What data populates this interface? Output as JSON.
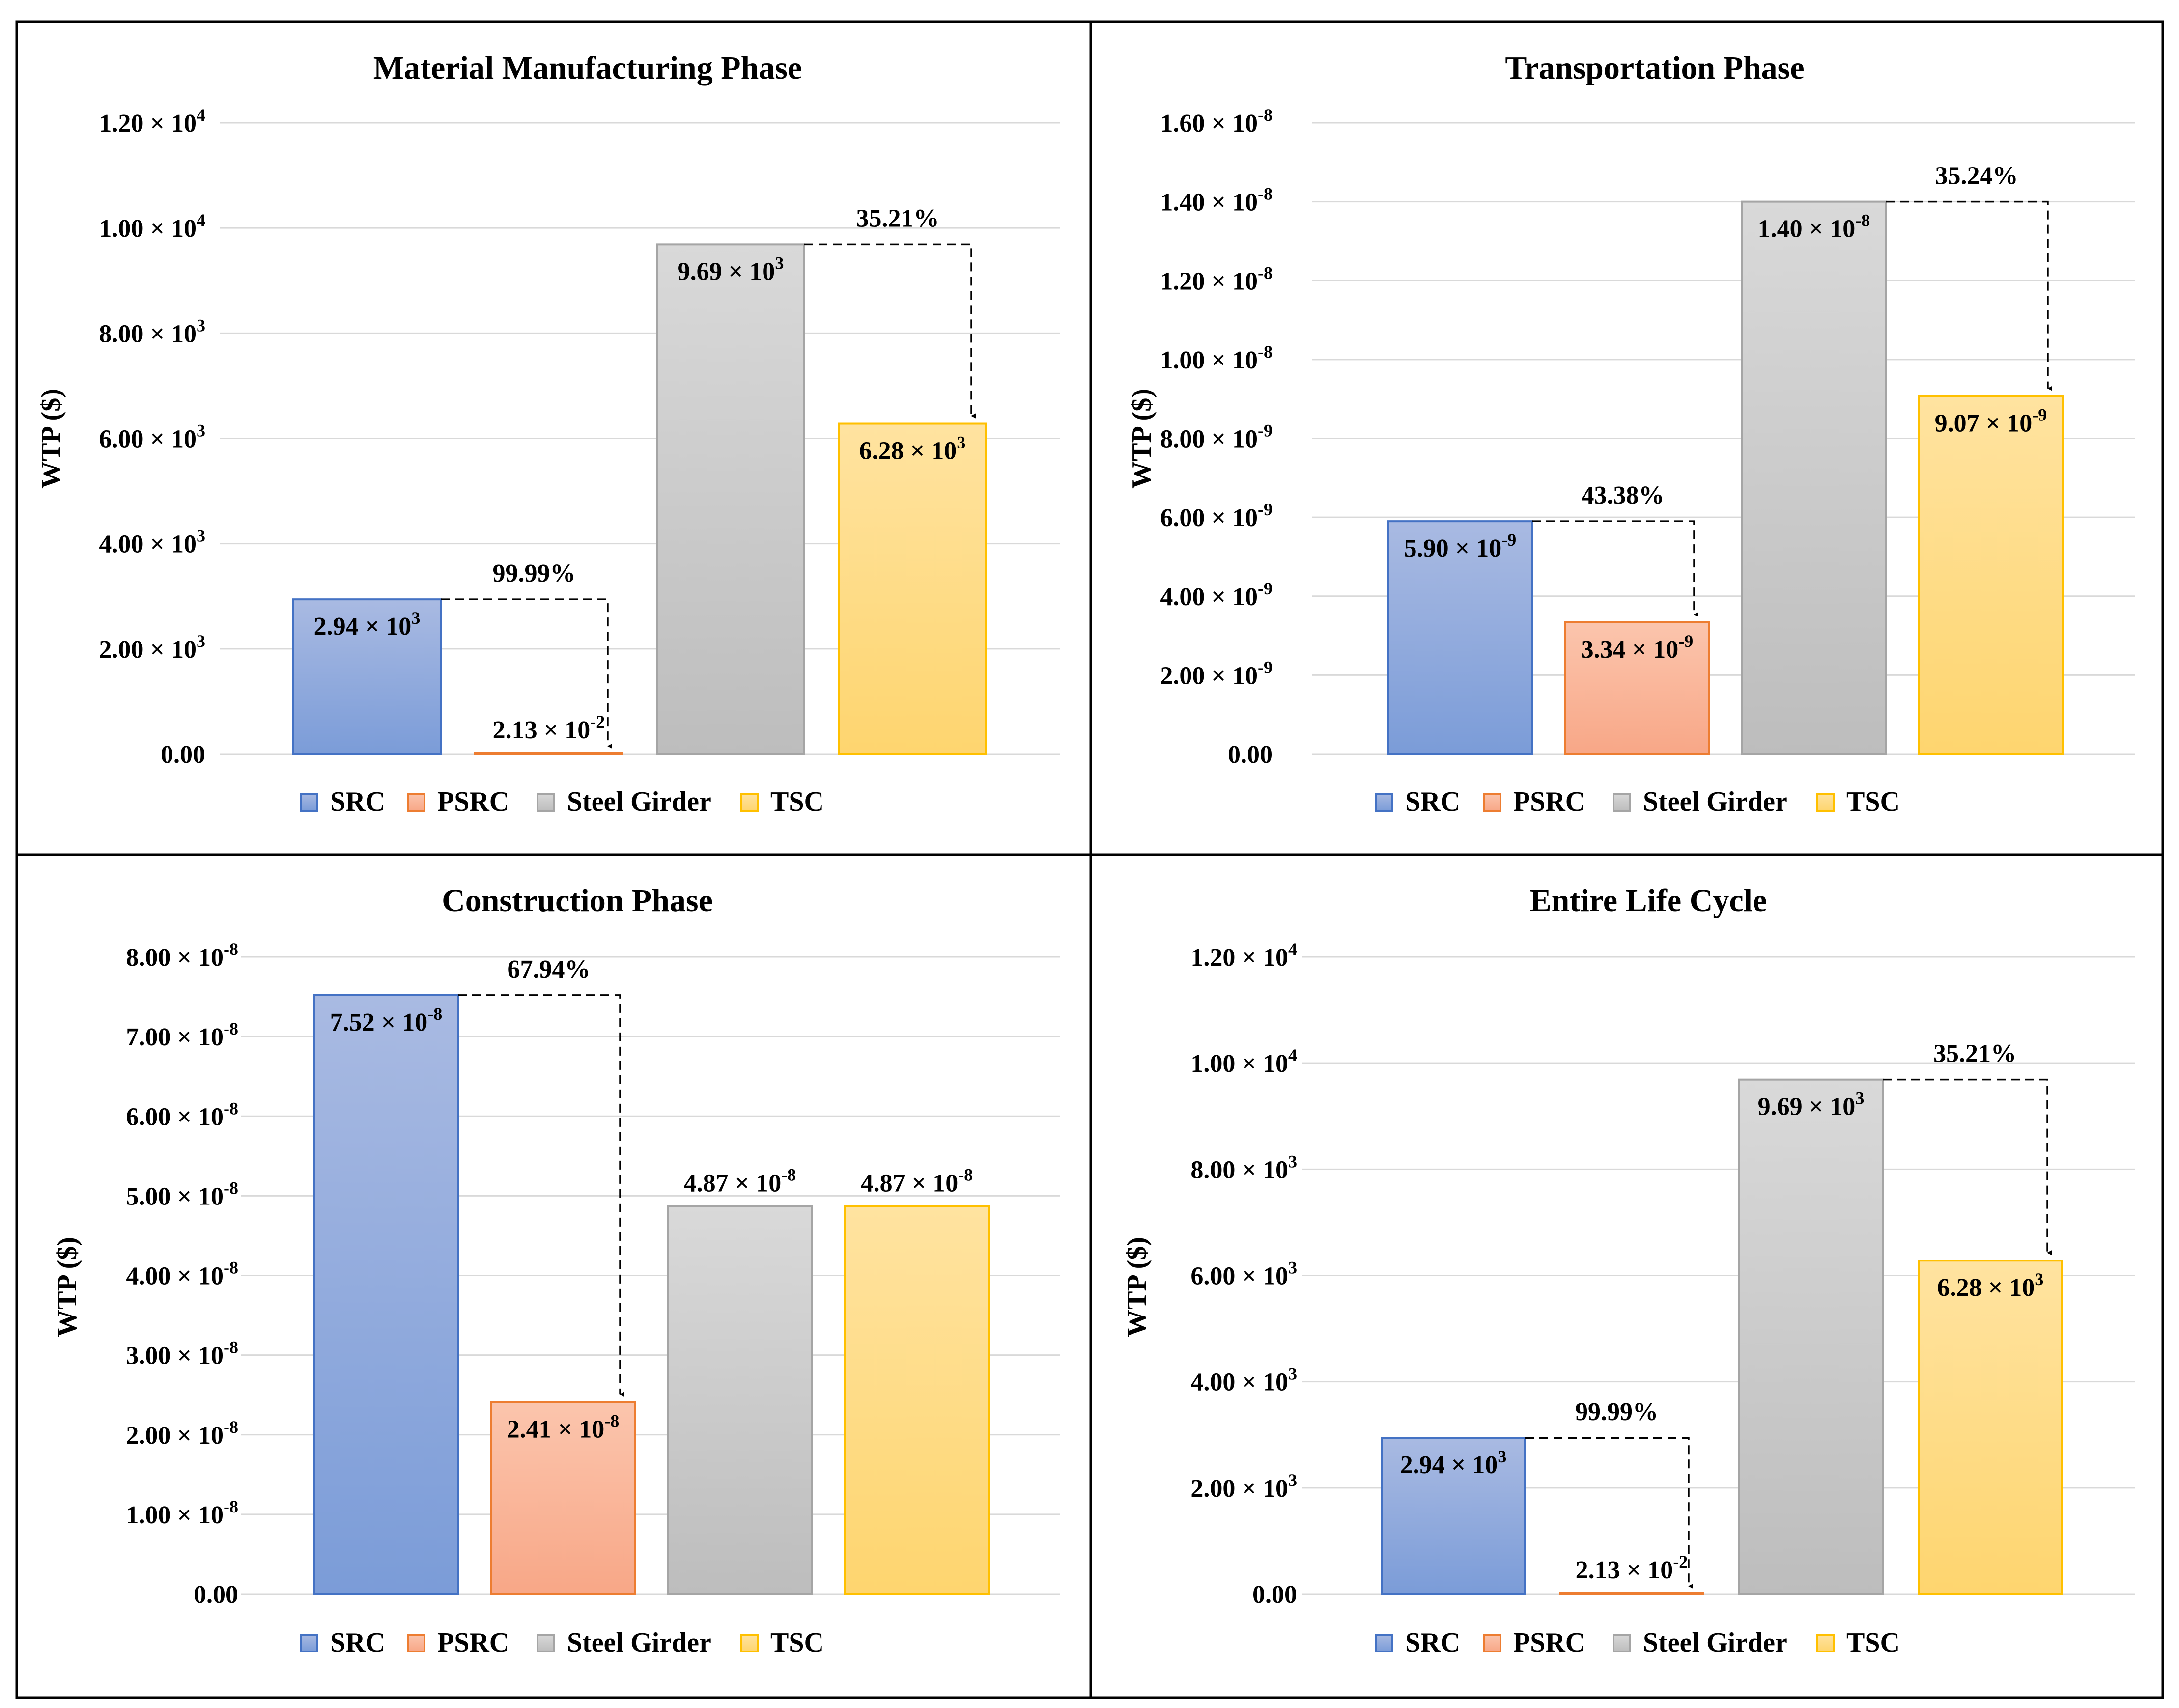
{
  "chart_data": [
    {
      "type": "bar",
      "title": "Material Manufacturing Phase",
      "ylabel": "WTP ($)",
      "categories": [
        "SRC",
        "PSRC",
        "Steel Girder",
        "TSC"
      ],
      "values": [
        2940,
        0.0213,
        9690,
        6280
      ],
      "ylim": [
        0,
        12000
      ],
      "yticks": [
        0,
        2000,
        4000,
        6000,
        8000,
        10000,
        12000
      ],
      "ytick_labels": [
        {
          "m": "0.00",
          "e": ""
        },
        {
          "m": "2.00 × 10",
          "e": "3"
        },
        {
          "m": "4.00 × 10",
          "e": "3"
        },
        {
          "m": "6.00 × 10",
          "e": "3"
        },
        {
          "m": "8.00 × 10",
          "e": "3"
        },
        {
          "m": "1.00 × 10",
          "e": "4"
        },
        {
          "m": "1.20 × 10",
          "e": "4"
        }
      ],
      "data_labels": [
        {
          "m": "2.94 × 10",
          "e": "3",
          "pos": "inside"
        },
        {
          "m": "2.13 × 10",
          "e": "-2",
          "pos": "above"
        },
        {
          "m": "9.69 × 10",
          "e": "3",
          "pos": "inside"
        },
        {
          "m": "6.28 × 10",
          "e": "3",
          "pos": "inside"
        }
      ],
      "reductions": [
        {
          "from": 0,
          "to": 1,
          "label": "99.99%"
        },
        {
          "from": 2,
          "to": 3,
          "label": "35.21%"
        }
      ],
      "legend": [
        "SRC",
        "PSRC",
        "Steel Girder",
        "TSC"
      ],
      "legend_position": "bottom",
      "grid": true
    },
    {
      "type": "bar",
      "title": "Transportation Phase",
      "ylabel": "WTP ($)",
      "categories": [
        "SRC",
        "PSRC",
        "Steel Girder",
        "TSC"
      ],
      "values": [
        5.9e-09,
        3.34e-09,
        1.4e-08,
        9.07e-09
      ],
      "ylim": [
        0,
        1.6e-08
      ],
      "yticks": [
        0,
        2e-09,
        4e-09,
        6e-09,
        8e-09,
        1e-08,
        1.2e-08,
        1.4e-08,
        1.6e-08
      ],
      "ytick_labels": [
        {
          "m": "0.00",
          "e": ""
        },
        {
          "m": "2.00 × 10",
          "e": "-9"
        },
        {
          "m": "4.00 × 10",
          "e": "-9"
        },
        {
          "m": "6.00 × 10",
          "e": "-9"
        },
        {
          "m": "8.00 × 10",
          "e": "-9"
        },
        {
          "m": "1.00 × 10",
          "e": "-8"
        },
        {
          "m": "1.20 × 10",
          "e": "-8"
        },
        {
          "m": "1.40 × 10",
          "e": "-8"
        },
        {
          "m": "1.60 × 10",
          "e": "-8"
        }
      ],
      "data_labels": [
        {
          "m": "5.90 × 10",
          "e": "-9",
          "pos": "inside"
        },
        {
          "m": "3.34 × 10",
          "e": "-9",
          "pos": "inside"
        },
        {
          "m": "1.40 × 10",
          "e": "-8",
          "pos": "inside"
        },
        {
          "m": "9.07 × 10",
          "e": "-9",
          "pos": "inside"
        }
      ],
      "reductions": [
        {
          "from": 0,
          "to": 1,
          "label": "43.38%"
        },
        {
          "from": 2,
          "to": 3,
          "label": "35.24%"
        }
      ],
      "legend": [
        "SRC",
        "PSRC",
        "Steel Girder",
        "TSC"
      ],
      "legend_position": "bottom",
      "grid": true
    },
    {
      "type": "bar",
      "title": "Construction Phase",
      "ylabel": "WTP ($)",
      "categories": [
        "SRC",
        "PSRC",
        "Steel Girder",
        "TSC"
      ],
      "values": [
        7.52e-08,
        2.41e-08,
        4.87e-08,
        4.87e-08
      ],
      "ylim": [
        0,
        8e-08
      ],
      "yticks": [
        0,
        1e-08,
        2e-08,
        3e-08,
        4e-08,
        5e-08,
        6e-08,
        7e-08,
        8e-08
      ],
      "ytick_labels": [
        {
          "m": "0.00",
          "e": ""
        },
        {
          "m": "1.00 × 10",
          "e": "-8"
        },
        {
          "m": "2.00 × 10",
          "e": "-8"
        },
        {
          "m": "3.00 × 10",
          "e": "-8"
        },
        {
          "m": "4.00 × 10",
          "e": "-8"
        },
        {
          "m": "5.00 × 10",
          "e": "-8"
        },
        {
          "m": "6.00 × 10",
          "e": "-8"
        },
        {
          "m": "7.00 × 10",
          "e": "-8"
        },
        {
          "m": "8.00 × 10",
          "e": "-8"
        }
      ],
      "data_labels": [
        {
          "m": "7.52 × 10",
          "e": "-8",
          "pos": "inside"
        },
        {
          "m": "2.41 × 10",
          "e": "-8",
          "pos": "inside"
        },
        {
          "m": "4.87 × 10",
          "e": "-8",
          "pos": "above"
        },
        {
          "m": "4.87 × 10",
          "e": "-8",
          "pos": "above"
        }
      ],
      "reductions": [
        {
          "from": 0,
          "to": 1,
          "label": "67.94%"
        }
      ],
      "legend": [
        "SRC",
        "PSRC",
        "Steel Girder",
        "TSC"
      ],
      "legend_position": "bottom",
      "grid": true
    },
    {
      "type": "bar",
      "title": "Entire Life Cycle",
      "ylabel": "WTP ($)",
      "categories": [
        "SRC",
        "PSRC",
        "Steel Girder",
        "TSC"
      ],
      "values": [
        2940,
        0.0213,
        9690,
        6280
      ],
      "ylim": [
        0,
        12000
      ],
      "yticks": [
        0,
        2000,
        4000,
        6000,
        8000,
        10000,
        12000
      ],
      "ytick_labels": [
        {
          "m": "0.00",
          "e": ""
        },
        {
          "m": "2.00 × 10",
          "e": "3"
        },
        {
          "m": "4.00 × 10",
          "e": "3"
        },
        {
          "m": "6.00 × 10",
          "e": "3"
        },
        {
          "m": "8.00 × 10",
          "e": "3"
        },
        {
          "m": "1.00 × 10",
          "e": "4"
        },
        {
          "m": "1.20 × 10",
          "e": "4"
        }
      ],
      "data_labels": [
        {
          "m": "2.94 × 10",
          "e": "3",
          "pos": "inside"
        },
        {
          "m": "2.13 × 10",
          "e": "-2",
          "pos": "above"
        },
        {
          "m": "9.69 × 10",
          "e": "3",
          "pos": "inside"
        },
        {
          "m": "6.28 × 10",
          "e": "3",
          "pos": "inside"
        }
      ],
      "reductions": [
        {
          "from": 0,
          "to": 1,
          "label": "99.99%"
        },
        {
          "from": 2,
          "to": 3,
          "label": "35.21%"
        }
      ],
      "legend": [
        "SRC",
        "PSRC",
        "Steel Girder",
        "TSC"
      ],
      "legend_position": "bottom",
      "grid": true
    }
  ],
  "series_colors": {
    "SRC": {
      "top": "#a9bae2",
      "bottom": "#7b9cd8",
      "edge": "#4472c4"
    },
    "PSRC": {
      "top": "#fbc5ad",
      "bottom": "#f8a787",
      "edge": "#ed7d31"
    },
    "Steel Girder": {
      "top": "#d9d9d9",
      "bottom": "#bdbdbd",
      "edge": "#a5a5a5"
    },
    "TSC": {
      "top": "#ffe3a0",
      "bottom": "#fed56f",
      "edge": "#ffc000"
    }
  }
}
